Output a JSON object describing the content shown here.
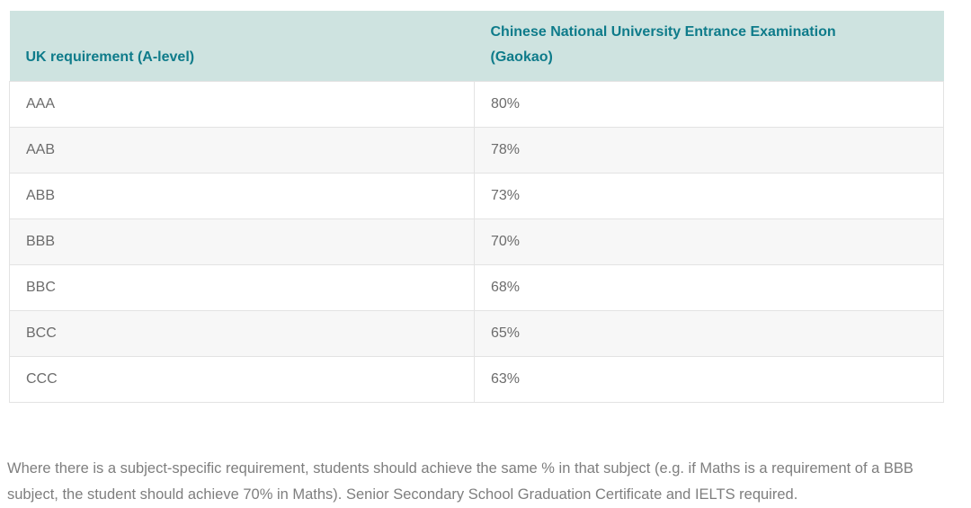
{
  "table": {
    "columns": [
      {
        "label": "UK requirement (A-level)"
      },
      {
        "label": "Chinese National University Entrance Examination (Gaokao)"
      }
    ],
    "rows": [
      {
        "uk": "AAA",
        "gaokao": "80%"
      },
      {
        "uk": "AAB",
        "gaokao": "78%"
      },
      {
        "uk": "ABB",
        "gaokao": "73%"
      },
      {
        "uk": "BBB",
        "gaokao": "70%"
      },
      {
        "uk": "BBC",
        "gaokao": "68%"
      },
      {
        "uk": "BCC",
        "gaokao": "65%"
      },
      {
        "uk": "CCC",
        "gaokao": "63%"
      }
    ]
  },
  "footnote": "Where there is a subject-specific requirement, students should achieve the same % in that subject (e.g. if Maths is a requirement of a BBB subject, the student should achieve 70% in Maths). Senior Secondary School Graduation Certificate and IELTS required.",
  "colors": {
    "header_bg": "#cee3e0",
    "header_text": "#0e7b8a",
    "body_text": "#6c6c6c",
    "alt_row_bg": "#f7f7f7",
    "border": "#e3e3e3",
    "footnote_text": "#7e7e7e"
  }
}
